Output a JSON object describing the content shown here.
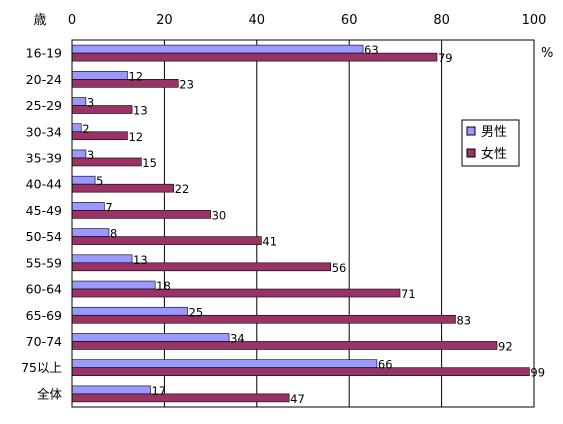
{
  "chart_data": {
    "type": "bar",
    "orientation": "horizontal",
    "y_axis_label": "歳",
    "unit_label": "%",
    "xlim": [
      0,
      100
    ],
    "x_ticks": [
      0,
      20,
      40,
      60,
      80,
      100
    ],
    "grid": "vertical",
    "legend_position": "right",
    "categories": [
      "16-19",
      "20-24",
      "25-29",
      "30-34",
      "35-39",
      "40-44",
      "45-49",
      "50-54",
      "55-59",
      "60-64",
      "65-69",
      "70-74",
      "75以上",
      "全体"
    ],
    "series": [
      {
        "name": "男性",
        "color": "#9999ff",
        "values": [
          63,
          12,
          3,
          2,
          3,
          5,
          7,
          8,
          13,
          18,
          25,
          34,
          66,
          17
        ]
      },
      {
        "name": "女性",
        "color": "#993366",
        "values": [
          79,
          23,
          13,
          12,
          15,
          22,
          30,
          41,
          56,
          71,
          83,
          92,
          99,
          47
        ]
      }
    ]
  }
}
